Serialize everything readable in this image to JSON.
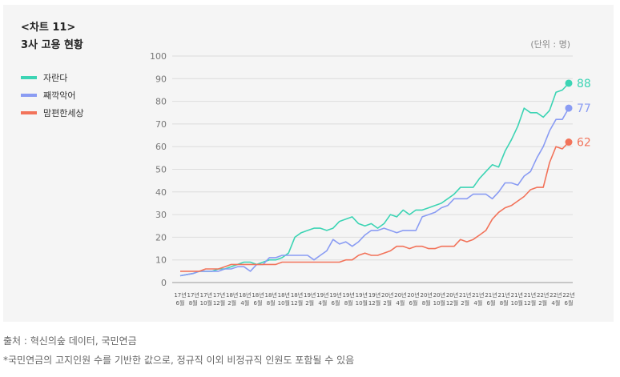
{
  "title_line1": "<차트 11>",
  "title_line2": "3사 고용 현황",
  "unit": "(단위 : 명)",
  "source": "출처 : 혁신의숲 데이터, 국민연금",
  "note": "*국민연금의 고지인원 수를 기반한 값으로, 정규직 이외 비정규직 인원도 포함될 수 있음",
  "colors": {
    "s0": "#3cd4b4",
    "s1": "#8a9cf3",
    "s2": "#f2735a"
  },
  "chart_data": {
    "type": "line",
    "ylim": [
      0,
      100
    ],
    "yticks": [
      0,
      10,
      20,
      30,
      40,
      50,
      60,
      70,
      80,
      90,
      100
    ],
    "grid": true,
    "legend": "top-left",
    "x_ticks": [
      {
        "y": "17년",
        "m": "6월"
      },
      {
        "y": "17년",
        "m": "8월"
      },
      {
        "y": "17년",
        "m": "10월"
      },
      {
        "y": "17년",
        "m": "12월"
      },
      {
        "y": "18년",
        "m": "2월"
      },
      {
        "y": "18년",
        "m": "4월"
      },
      {
        "y": "18년",
        "m": "6월"
      },
      {
        "y": "18년",
        "m": "8월"
      },
      {
        "y": "18년",
        "m": "10월"
      },
      {
        "y": "18년",
        "m": "12월"
      },
      {
        "y": "19년",
        "m": "2월"
      },
      {
        "y": "19년",
        "m": "4월"
      },
      {
        "y": "19년",
        "m": "6월"
      },
      {
        "y": "19년",
        "m": "8월"
      },
      {
        "y": "19년",
        "m": "10월"
      },
      {
        "y": "19년",
        "m": "12월"
      },
      {
        "y": "20년",
        "m": "2월"
      },
      {
        "y": "20년",
        "m": "4월"
      },
      {
        "y": "20년",
        "m": "6월"
      },
      {
        "y": "20년",
        "m": "8월"
      },
      {
        "y": "20년",
        "m": "10월"
      },
      {
        "y": "20년",
        "m": "12월"
      },
      {
        "y": "21년",
        "m": "2월"
      },
      {
        "y": "21년",
        "m": "4월"
      },
      {
        "y": "21년",
        "m": "6월"
      },
      {
        "y": "21년",
        "m": "8월"
      },
      {
        "y": "21년",
        "m": "10월"
      },
      {
        "y": "21년",
        "m": "12월"
      },
      {
        "y": "22년",
        "m": "2월"
      },
      {
        "y": "22년",
        "m": "4월"
      },
      {
        "y": "22년",
        "m": "6월"
      }
    ],
    "series": [
      {
        "name": "자란다",
        "end_label": "88",
        "values": [
          3,
          3.5,
          4,
          5,
          5,
          5,
          6,
          6,
          7,
          8,
          9,
          9,
          8,
          9,
          10,
          10,
          11,
          13,
          20,
          22,
          23,
          24,
          24,
          23,
          24,
          27,
          28,
          29,
          26,
          25,
          26,
          24,
          26,
          30,
          29,
          32,
          30,
          32,
          32,
          33,
          34,
          35,
          37,
          39,
          42,
          42,
          42,
          46,
          49,
          52,
          51,
          58,
          63,
          69,
          77,
          75,
          75,
          73,
          76,
          84,
          85,
          88
        ]
      },
      {
        "name": "째깍악어",
        "end_label": "77",
        "values": [
          3,
          3.5,
          4,
          5,
          5,
          5,
          5,
          6,
          6,
          7,
          7,
          5,
          8,
          8,
          11,
          11,
          12,
          12,
          12,
          12,
          12,
          10,
          12,
          14,
          19,
          17,
          18,
          16,
          18,
          21,
          23,
          23,
          24,
          23,
          22,
          23,
          23,
          23,
          29,
          30,
          31,
          33,
          34,
          37,
          37,
          37,
          39,
          39,
          39,
          37,
          40,
          44,
          44,
          43,
          47,
          49,
          55,
          60,
          67,
          72,
          72,
          77
        ]
      },
      {
        "name": "맘편한세상",
        "end_label": "62",
        "values": [
          5,
          5,
          5,
          5,
          6,
          6,
          6,
          7,
          8,
          8,
          8,
          8,
          8,
          8,
          8,
          8,
          9,
          9,
          9,
          9,
          9,
          9,
          9,
          9,
          9,
          9,
          10,
          10,
          12,
          13,
          12,
          12,
          13,
          14,
          16,
          16,
          15,
          16,
          16,
          15,
          15,
          16,
          16,
          16,
          19,
          18,
          19,
          21,
          23,
          28,
          31,
          33,
          34,
          36,
          38,
          41,
          42,
          42,
          53,
          60,
          59,
          62
        ]
      }
    ]
  }
}
